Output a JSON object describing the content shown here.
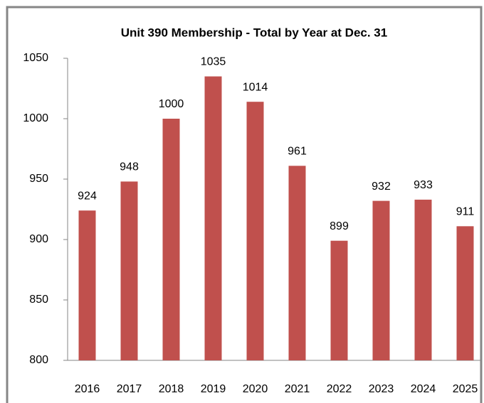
{
  "chart_data": {
    "type": "bar",
    "title": "Unit 390 Membership - Total by Year at Dec. 31",
    "categories": [
      "2016",
      "2017",
      "2018",
      "2019",
      "2020",
      "2021",
      "2022",
      "2023",
      "2024",
      "2025"
    ],
    "values": [
      924,
      948,
      1000,
      1035,
      1014,
      961,
      899,
      932,
      933,
      911
    ],
    "color": "#c0504d",
    "ylim": [
      800,
      1050
    ],
    "yticks": [
      800,
      850,
      900,
      950,
      1000,
      1050
    ],
    "grid": false
  }
}
